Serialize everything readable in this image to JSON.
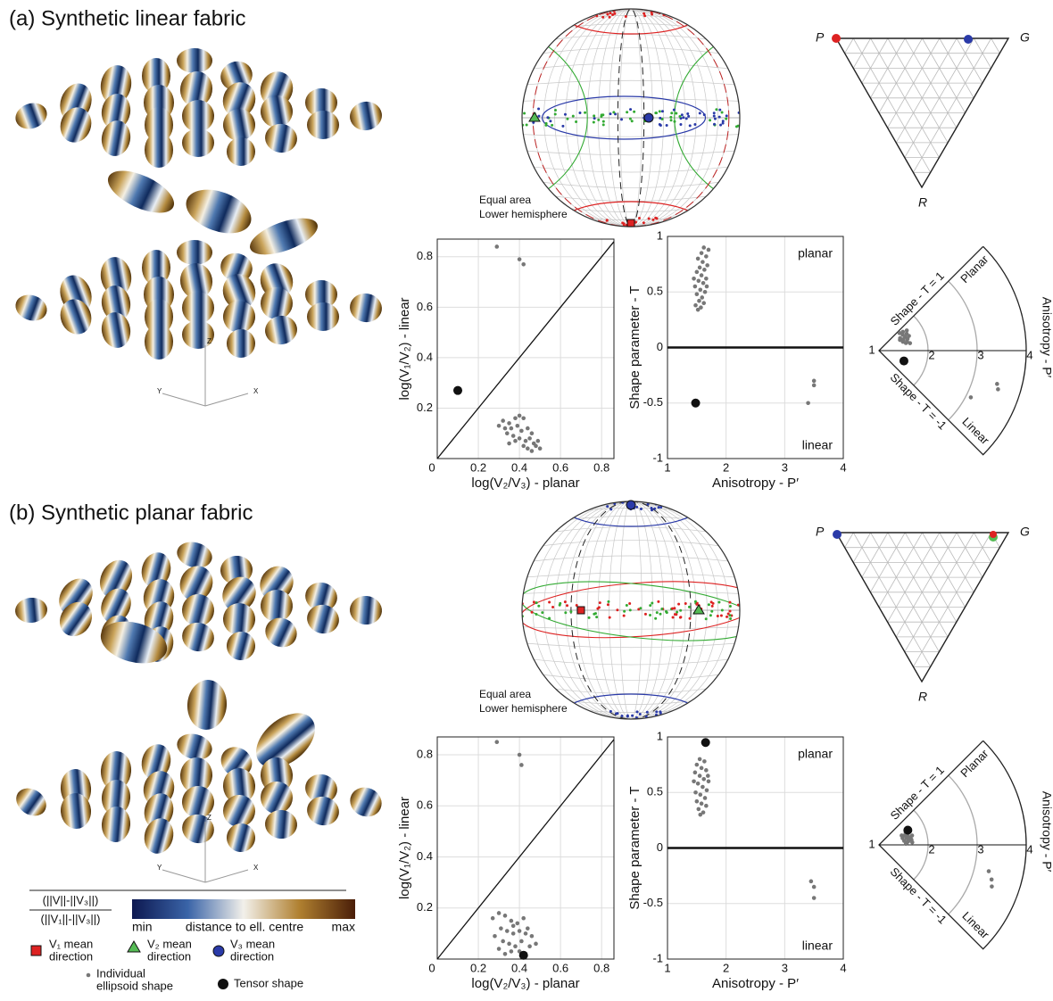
{
  "panels": [
    {
      "title": "(a) Synthetic linear fabric",
      "stereonet_labels": [
        "Equal area",
        "Lower hemisphere"
      ],
      "ternary_labels": [
        "P",
        "G",
        "R"
      ],
      "axes_labels": [
        "Y",
        "X",
        "Z"
      ]
    },
    {
      "title": "(b) Synthetic planar fabric",
      "stereonet_labels": [
        "Equal area",
        "Lower hemisphere"
      ],
      "ternary_labels": [
        "P",
        "G",
        "R"
      ],
      "axes_labels": [
        "Y",
        "X",
        "Z"
      ]
    }
  ],
  "legend": {
    "fraction_top": "(||V||-||V₃||)",
    "fraction_bottom": "(||V₁||-||V₃||)",
    "colorbar": [
      "min",
      "distance to ell. centre",
      "max"
    ],
    "items": [
      [
        "V₁ mean",
        "direction"
      ],
      [
        "V₂ mean",
        "direction"
      ],
      [
        "V₃ mean",
        "direction"
      ],
      [
        "Individual",
        "ellipsoid shape"
      ],
      [
        "Tensor shape"
      ]
    ]
  },
  "chart_data": [
    {
      "type": "scatter",
      "xlabel": "log(V₂/V₃) - planar",
      "ylabel": "log(V₁/V₂) - linear",
      "xlim": [
        0,
        0.86
      ],
      "ylim": [
        0,
        0.87
      ],
      "xticks": [
        0,
        0.2,
        0.4,
        0.6,
        0.8
      ],
      "yticks": [
        0.2,
        0.4,
        0.6,
        0.8
      ],
      "grid": true,
      "diagonal": true,
      "series": [
        {
          "color": "#777777",
          "x": [
            0.32,
            0.35,
            0.38,
            0.4,
            0.42,
            0.3,
            0.33,
            0.36,
            0.39,
            0.41,
            0.44,
            0.46,
            0.34,
            0.37,
            0.4,
            0.43,
            0.45,
            0.47,
            0.48,
            0.5,
            0.46,
            0.38,
            0.35,
            0.42,
            0.44,
            0.49,
            0.29,
            0.4,
            0.42
          ],
          "y": [
            0.15,
            0.14,
            0.16,
            0.17,
            0.16,
            0.13,
            0.12,
            0.12,
            0.13,
            0.11,
            0.12,
            0.1,
            0.1,
            0.09,
            0.08,
            0.07,
            0.08,
            0.06,
            0.05,
            0.04,
            0.03,
            0.07,
            0.06,
            0.05,
            0.04,
            0.07,
            0.84,
            0.79,
            0.77
          ]
        },
        {
          "color": "#111111",
          "x": [
            0.1
          ],
          "y": [
            0.27
          ]
        }
      ]
    },
    {
      "type": "scatter",
      "xlabel": "Anisotropy - P′",
      "ylabel": "Shape parameter - T",
      "xlim": [
        1,
        4
      ],
      "ylim": [
        -1,
        1
      ],
      "xticks": [
        1,
        2,
        3,
        4
      ],
      "yticks": [
        -1,
        -0.5,
        0,
        0.5,
        1
      ],
      "grid": true,
      "zeroline": true,
      "annotations": [
        "planar",
        "linear"
      ],
      "series": [
        {
          "color": "#777777",
          "x": [
            1.62,
            1.7,
            1.58,
            1.66,
            1.52,
            1.6,
            1.68,
            1.55,
            1.63,
            1.5,
            1.58,
            1.66,
            1.53,
            1.61,
            1.47,
            1.56,
            1.64,
            1.5,
            1.59,
            1.54,
            1.62,
            1.48,
            1.57,
            1.52,
            1.67,
            1.45,
            3.4,
            3.5,
            3.5
          ],
          "y": [
            0.9,
            0.88,
            0.85,
            0.82,
            0.8,
            0.77,
            0.74,
            0.72,
            0.7,
            0.68,
            0.65,
            0.62,
            0.6,
            0.58,
            0.55,
            0.52,
            0.5,
            0.48,
            0.45,
            0.42,
            0.4,
            0.38,
            0.36,
            0.34,
            0.55,
            0.62,
            -0.5,
            -0.3,
            -0.34
          ]
        },
        {
          "color": "#111111",
          "x": [
            1.48
          ],
          "y": [
            -0.5
          ]
        }
      ]
    },
    {
      "type": "polar",
      "rlim": [
        1,
        4
      ],
      "rticks": [
        1,
        2,
        3,
        4
      ],
      "labels": {
        "upper": "Shape - T = 1",
        "planar": "Planar",
        "linear": "Linear",
        "lower": "Shape - T = -1",
        "radial": "Anisotropy - P′"
      },
      "series": [
        {
          "color": "#777777",
          "r": [
            1.55,
            1.62,
            1.7,
            1.58,
            1.66,
            1.5,
            1.6,
            1.68,
            1.55,
            1.63,
            1.52,
            1.6,
            1.57,
            1.65,
            1.48,
            3.1,
            3.5,
            3.55
          ],
          "t": [
            0.9,
            0.85,
            0.8,
            0.75,
            0.7,
            0.68,
            0.62,
            0.58,
            0.55,
            0.5,
            0.45,
            0.4,
            0.35,
            0.3,
            0.6,
            -0.6,
            -0.35,
            -0.4
          ]
        },
        {
          "color": "#111111",
          "r": [
            1.55
          ],
          "t": [
            -0.5
          ]
        }
      ]
    },
    {
      "type": "scatter",
      "xlabel": "log(V₂/V₃) - planar",
      "ylabel": "log(V₁/V₂) - linear",
      "xlim": [
        0,
        0.86
      ],
      "ylim": [
        0,
        0.87
      ],
      "xticks": [
        0,
        0.2,
        0.4,
        0.6,
        0.8
      ],
      "yticks": [
        0.2,
        0.4,
        0.6,
        0.8
      ],
      "grid": true,
      "diagonal": true,
      "series": [
        {
          "color": "#777777",
          "x": [
            0.27,
            0.3,
            0.33,
            0.36,
            0.39,
            0.42,
            0.44,
            0.31,
            0.34,
            0.37,
            0.4,
            0.46,
            0.28,
            0.32,
            0.35,
            0.38,
            0.41,
            0.45,
            0.48,
            0.3,
            0.36,
            0.4,
            0.33,
            0.43,
            0.37,
            0.29,
            0.4,
            0.41
          ],
          "y": [
            0.16,
            0.18,
            0.17,
            0.15,
            0.14,
            0.16,
            0.12,
            0.12,
            0.11,
            0.1,
            0.11,
            0.09,
            0.09,
            0.07,
            0.06,
            0.05,
            0.07,
            0.05,
            0.06,
            0.04,
            0.03,
            0.03,
            0.02,
            0.1,
            0.13,
            0.85,
            0.8,
            0.76
          ]
        },
        {
          "color": "#111111",
          "x": [
            0.42
          ],
          "y": [
            0.015
          ]
        }
      ]
    },
    {
      "type": "scatter",
      "xlabel": "Anisotropy - P′",
      "ylabel": "Shape parameter - T",
      "xlim": [
        1,
        4
      ],
      "ylim": [
        -1,
        1
      ],
      "xticks": [
        1,
        2,
        3,
        4
      ],
      "yticks": [
        -1,
        -0.5,
        0,
        0.5,
        1
      ],
      "grid": true,
      "zeroline": true,
      "annotations": [
        "planar",
        "linear"
      ],
      "series": [
        {
          "color": "#777777",
          "x": [
            1.55,
            1.63,
            1.5,
            1.58,
            1.66,
            1.47,
            1.55,
            1.62,
            1.7,
            1.52,
            1.6,
            1.67,
            1.48,
            1.56,
            1.64,
            1.5,
            1.58,
            1.66,
            1.53,
            1.61,
            1.56,
            1.45,
            1.69,
            3.45,
            3.5,
            3.5
          ],
          "y": [
            0.8,
            0.78,
            0.75,
            0.72,
            0.7,
            0.68,
            0.65,
            0.62,
            0.6,
            0.58,
            0.55,
            0.52,
            0.5,
            0.48,
            0.45,
            0.42,
            0.4,
            0.38,
            0.35,
            0.32,
            0.3,
            0.6,
            0.65,
            -0.3,
            -0.35,
            -0.45
          ]
        },
        {
          "color": "#111111",
          "x": [
            1.65
          ],
          "y": [
            0.95
          ]
        }
      ]
    },
    {
      "type": "polar",
      "rlim": [
        1,
        4
      ],
      "rticks": [
        1,
        2,
        3,
        4
      ],
      "labels": {
        "upper": "Shape - T = 1",
        "planar": "Planar",
        "linear": "Linear",
        "lower": "Shape - T = -1",
        "radial": "Anisotropy - P′"
      },
      "series": [
        {
          "color": "#777777",
          "r": [
            1.5,
            1.55,
            1.62,
            1.7,
            1.58,
            1.66,
            1.52,
            1.6,
            1.68,
            1.55,
            1.63,
            1.5,
            1.6,
            1.67,
            1.57,
            3.3,
            3.4,
            3.45
          ],
          "t": [
            0.5,
            0.45,
            0.4,
            0.35,
            0.3,
            0.25,
            0.2,
            0.15,
            0.1,
            0.05,
            0.3,
            0.35,
            0.55,
            0.2,
            0.1,
            -0.3,
            -0.38,
            -0.45
          ]
        },
        {
          "color": "#111111",
          "r": [
            1.66
          ],
          "t": [
            0.6
          ]
        }
      ]
    }
  ]
}
